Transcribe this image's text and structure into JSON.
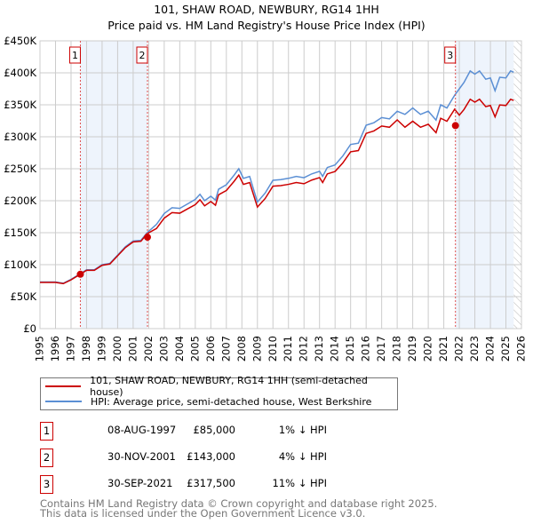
{
  "title": "101, SHAW ROAD, NEWBURY, RG14 1HH",
  "subtitle": "Price paid vs. HM Land Registry's House Price Index (HPI)",
  "chart_data": {
    "type": "line",
    "ylim": [
      0,
      450000
    ],
    "xlim": [
      1995,
      2026
    ],
    "yticks": [
      {
        "v": 0,
        "l": "£0"
      },
      {
        "v": 50000,
        "l": "£50K"
      },
      {
        "v": 100000,
        "l": "£100K"
      },
      {
        "v": 150000,
        "l": "£150K"
      },
      {
        "v": 200000,
        "l": "£200K"
      },
      {
        "v": 250000,
        "l": "£250K"
      },
      {
        "v": 300000,
        "l": "£300K"
      },
      {
        "v": 350000,
        "l": "£350K"
      },
      {
        "v": 400000,
        "l": "£400K"
      },
      {
        "v": 450000,
        "l": "£450K"
      }
    ],
    "xticks": [
      "1995",
      "1996",
      "1997",
      "1998",
      "1999",
      "2000",
      "2001",
      "2002",
      "2003",
      "2004",
      "2005",
      "2006",
      "2007",
      "2008",
      "2009",
      "2010",
      "2011",
      "2012",
      "2013",
      "2014",
      "2015",
      "2016",
      "2017",
      "2018",
      "2019",
      "2020",
      "2021",
      "2022",
      "2023",
      "2024",
      "2025",
      "2026"
    ],
    "colors": {
      "property": "#cc0000",
      "hpi": "#5b8fd4",
      "shade": "#eef4fc"
    },
    "shaded_periods": [
      [
        1997.6,
        2001.92
      ],
      [
        2021.75,
        2025.5
      ]
    ],
    "hatched_from": 2025.5,
    "hpi": {
      "x": [
        1995,
        1996,
        1996.5,
        1997,
        1997.6,
        1998,
        1998.5,
        1999,
        1999.5,
        2000,
        2000.5,
        2001,
        2001.5,
        2001.9,
        2002.5,
        2003,
        2003.5,
        2004,
        2004.5,
        2005,
        2005.3,
        2005.6,
        2006,
        2006.3,
        2006.5,
        2007,
        2007.5,
        2007.8,
        2008.1,
        2008.5,
        2009,
        2009.5,
        2010,
        2010.5,
        2011,
        2011.5,
        2012,
        2012.5,
        2013,
        2013.2,
        2013.5,
        2014,
        2014.5,
        2015,
        2015.5,
        2016,
        2016.5,
        2017,
        2017.5,
        2018,
        2018.5,
        2019,
        2019.5,
        2020,
        2020.5,
        2020.8,
        2021.2,
        2021.7,
        2022,
        2022.3,
        2022.7,
        2023,
        2023.3,
        2023.7,
        2024,
        2024.3,
        2024.6,
        2025,
        2025.3,
        2025.5
      ],
      "y": [
        73,
        73,
        71,
        77,
        86,
        92,
        92,
        100,
        102,
        115,
        128,
        137,
        138,
        150,
        163,
        180,
        189,
        188,
        195,
        202,
        210,
        200,
        207,
        201,
        218,
        225,
        240,
        250,
        235,
        238,
        198,
        212,
        232,
        233,
        235,
        238,
        236,
        242,
        246,
        238,
        252,
        256,
        270,
        288,
        290,
        318,
        322,
        330,
        328,
        340,
        335,
        345,
        335,
        340,
        326,
        350,
        345,
        365,
        375,
        385,
        403,
        398,
        403,
        390,
        392,
        372,
        393,
        392,
        403,
        401
      ]
    },
    "property_ratio_to_hpi": [
      {
        "from": 1995,
        "ratio": 0.99
      },
      {
        "from": 2001.92,
        "ratio": 0.96
      },
      {
        "from": 2018.5,
        "ratio": 0.94
      },
      {
        "from": 2021.75,
        "ratio": 0.89
      }
    ],
    "sales": [
      {
        "id": "1",
        "x": 1997.6,
        "y": 85000
      },
      {
        "id": "2",
        "x": 2001.92,
        "y": 143000
      },
      {
        "id": "3",
        "x": 2021.75,
        "y": 317500
      }
    ]
  },
  "legend": {
    "property": "101, SHAW ROAD, NEWBURY, RG14 1HH (semi-detached house)",
    "hpi": "HPI: Average price, semi-detached house, West Berkshire"
  },
  "sales_table": [
    {
      "num": "1",
      "date": "08-AUG-1997",
      "price": "£85,000",
      "hpi": "1% ↓ HPI"
    },
    {
      "num": "2",
      "date": "30-NOV-2001",
      "price": "£143,000",
      "hpi": "4% ↓ HPI"
    },
    {
      "num": "3",
      "date": "30-SEP-2021",
      "price": "£317,500",
      "hpi": "11% ↓ HPI"
    }
  ],
  "footer": [
    "Contains HM Land Registry data © Crown copyright and database right 2025.",
    "This data is licensed under the Open Government Licence v3.0."
  ]
}
